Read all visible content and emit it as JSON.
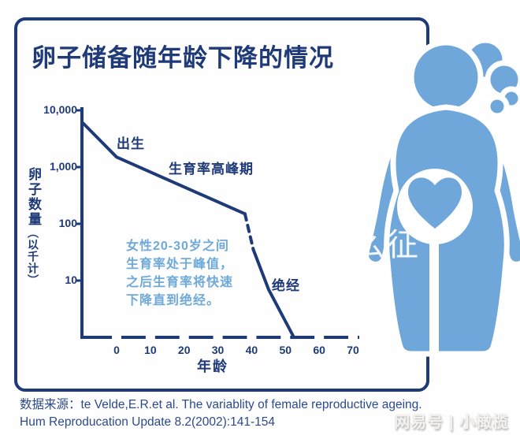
{
  "page": {
    "colors": {
      "navy": "#1e3a78",
      "source_navy": "#2b4a8e",
      "light_blue": "#6fa9d8",
      "figure_blue": "#6fa7db",
      "background": "#fefefe"
    }
  },
  "header": {
    "title": "卵子储备随年龄下降的情况"
  },
  "chart_data": {
    "type": "line",
    "title": "卵子储备随年龄下降的情况",
    "xlabel": "年龄",
    "ylabel_main": "卵子数量",
    "ylabel_sub": "（以千计）",
    "y_scale": "log10",
    "xlim": [
      -10,
      72
    ],
    "ylim": [
      1,
      10000
    ],
    "grid": false,
    "xticks": [
      0,
      10,
      20,
      30,
      40,
      50,
      60,
      70
    ],
    "yticks": [
      {
        "label": "10,000",
        "value": 10000
      },
      {
        "label": "1,000",
        "value": 1000
      },
      {
        "label": "100",
        "value": 100
      },
      {
        "label": "10",
        "value": 10
      }
    ],
    "series": [
      {
        "name": "卵子数量（以千计）",
        "segments": [
          {
            "style": "solid",
            "points": [
              [
                -10,
                6000
              ],
              [
                0,
                1500
              ],
              [
                38,
                150
              ]
            ]
          },
          {
            "style": "dashed",
            "points": [
              [
                38,
                150
              ],
              [
                40.5,
                35
              ]
            ]
          },
          {
            "style": "solid",
            "points": [
              [
                40.5,
                35
              ],
              [
                45,
                7
              ],
              [
                52.5,
                1
              ]
            ]
          }
        ]
      }
    ],
    "annotations": {
      "birth": "出生",
      "peak": "生育率高峰期",
      "menopause": "绝经",
      "note_lines": [
        "女性20-30岁之间",
        "生育率处于峰值，",
        "之后生育率将快速",
        "下降直到绝经。"
      ]
    }
  },
  "source": {
    "line1": "数据来源：te Velde,E.R.et al. The variablity of female reproductive ageing.",
    "line2": "Hum Reproducation Update 8.2(2002):141-154"
  },
  "watermarks": {
    "center": "么征",
    "bottom_right": "网易号 | 小橄榄"
  },
  "icons": {
    "figure": "pregnant-woman-icon",
    "belly": "heart-icon"
  }
}
